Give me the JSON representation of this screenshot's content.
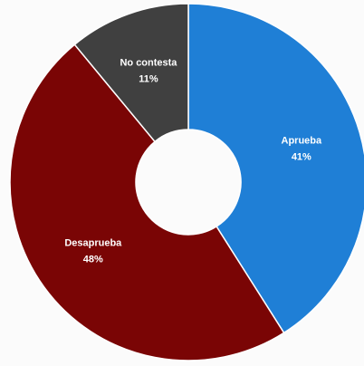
{
  "chart_data": {
    "type": "donut",
    "categories": [
      "Aprueba",
      "Desaprueba",
      "No contesta"
    ],
    "values": [
      41,
      48,
      11
    ],
    "value_labels": [
      "41%",
      "48%",
      "11%"
    ],
    "colors": [
      "#1f7fd6",
      "#7a0505",
      "#404040"
    ]
  }
}
